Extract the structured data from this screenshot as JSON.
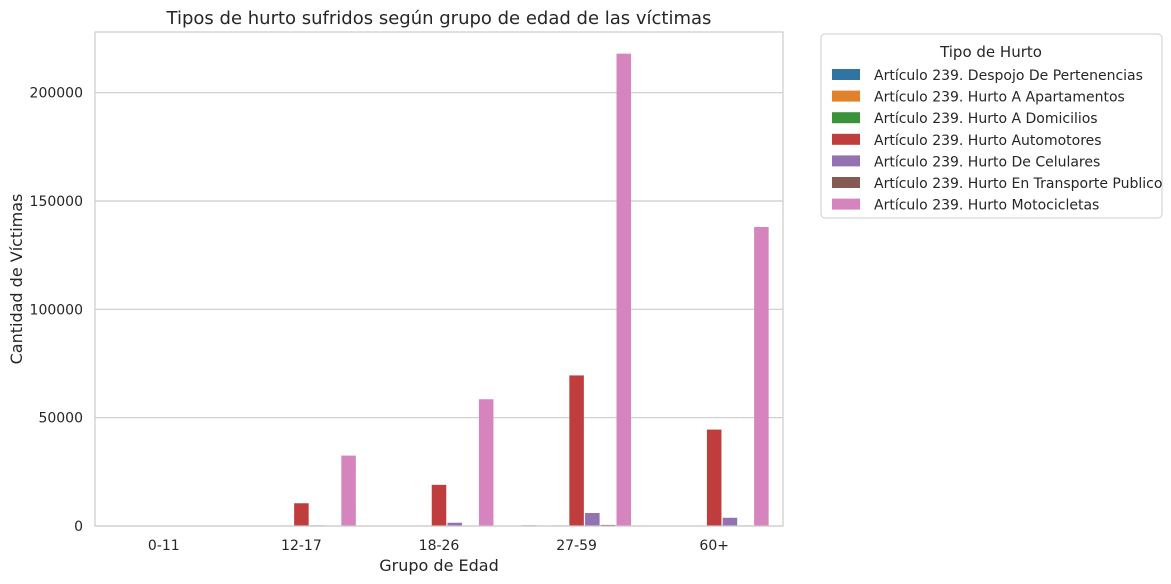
{
  "chart_data": {
    "type": "bar",
    "title": "Tipos de hurto sufridos según grupo de edad de las víctimas",
    "xlabel": "Grupo de Edad",
    "ylabel": "Cantidad de Víctimas",
    "categories": [
      "0-11",
      "12-17",
      "18-26",
      "27-59",
      "60+"
    ],
    "ylim": [
      0,
      228000
    ],
    "yticks": [
      0,
      50000,
      100000,
      150000,
      200000
    ],
    "grid": "horizontal",
    "legend": {
      "title": "Tipo de Hurto",
      "placement": "outside-top-right"
    },
    "series": [
      {
        "name": "Artículo 239. Despojo De Pertenencias",
        "color": "#3274a1",
        "values": [
          0,
          50,
          120,
          300,
          150
        ]
      },
      {
        "name": "Artículo 239. Hurto A Apartamentos",
        "color": "#e1812c",
        "values": [
          0,
          20,
          60,
          200,
          120
        ]
      },
      {
        "name": "Artículo 239. Hurto A Domicilios",
        "color": "#3a923a",
        "values": [
          0,
          30,
          80,
          250,
          130
        ]
      },
      {
        "name": "Artículo 239. Hurto Automotores",
        "color": "#c03d3e",
        "values": [
          0,
          10500,
          19000,
          69500,
          44500
        ]
      },
      {
        "name": "Artículo 239. Hurto De Celulares",
        "color": "#9372b2",
        "values": [
          0,
          300,
          1500,
          6000,
          3800
        ]
      },
      {
        "name": "Artículo 239. Hurto En Transporte Publico",
        "color": "#845b53",
        "values": [
          0,
          50,
          150,
          500,
          250
        ]
      },
      {
        "name": "Artículo 239. Hurto Motocicletas",
        "color": "#d684bd",
        "values": [
          0,
          32500,
          58500,
          218000,
          138000
        ]
      }
    ]
  }
}
